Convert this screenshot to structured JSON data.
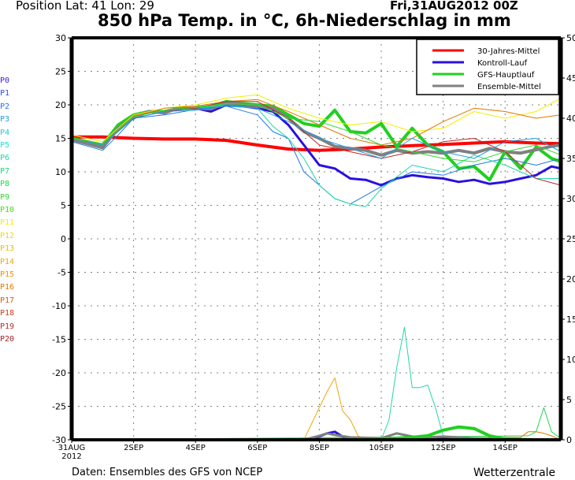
{
  "header": {
    "position": "Position   Lat: 41  Lon: 29",
    "date": "Fri,31AUG2012  00Z",
    "title": "850 hPa Temp. in °C, 6h-Niederschlag in mm"
  },
  "footer": {
    "source": "Daten: Ensembles des GFS von NCEP",
    "brand": "Wetterzentrale"
  },
  "members": [
    {
      "label": "P0",
      "color": "#3a1fd6"
    },
    {
      "label": "P1",
      "color": "#2a4fe8"
    },
    {
      "label": "P2",
      "color": "#1f78e8"
    },
    {
      "label": "P3",
      "color": "#1fa0e8"
    },
    {
      "label": "P4",
      "color": "#1fc8e0"
    },
    {
      "label": "P5",
      "color": "#1fe0d0"
    },
    {
      "label": "P6",
      "color": "#1fd8a8"
    },
    {
      "label": "P7",
      "color": "#1fd880"
    },
    {
      "label": "P8",
      "color": "#1fd850"
    },
    {
      "label": "P9",
      "color": "#30d830"
    },
    {
      "label": "P10",
      "color": "#40e010"
    },
    {
      "label": "P11",
      "color": "#f0f000"
    },
    {
      "label": "P12",
      "color": "#f0d800"
    },
    {
      "label": "P13",
      "color": "#f0c000"
    },
    {
      "label": "P14",
      "color": "#f0a800"
    },
    {
      "label": "P15",
      "color": "#f09000"
    },
    {
      "label": "P16",
      "color": "#e07800"
    },
    {
      "label": "P17",
      "color": "#d06010"
    },
    {
      "label": "P18",
      "color": "#c84020"
    },
    {
      "label": "P19",
      "color": "#c02828"
    },
    {
      "label": "P20",
      "color": "#a82020"
    }
  ],
  "chart_data": {
    "type": "line",
    "title": "850 hPa Temp. in °C, 6h-Niederschlag in mm",
    "xlabel": "",
    "ylabel_left": "°C",
    "ylabel_right": "mm",
    "x_unit": "days since 31AUG2012 00Z",
    "xlim": [
      0,
      15.8
    ],
    "ylim_left": [
      -30,
      30
    ],
    "ylim_right": [
      0,
      50
    ],
    "grid": true,
    "legend_position": "top-right",
    "x_ticks": [
      {
        "value": 0,
        "label": "31AUG",
        "sublabel": "2012"
      },
      {
        "value": 2,
        "label": "2SEP"
      },
      {
        "value": 4,
        "label": "4SEP"
      },
      {
        "value": 6,
        "label": "6SEP"
      },
      {
        "value": 8,
        "label": "8SEP"
      },
      {
        "value": 10,
        "label": "10SEP"
      },
      {
        "value": 12,
        "label": "12SEP"
      },
      {
        "value": 14,
        "label": "14SEP"
      }
    ],
    "y_ticks_left": [
      30,
      25,
      20,
      15,
      10,
      5,
      0,
      -5,
      -10,
      -15,
      -20,
      -25,
      -30
    ],
    "y_ticks_right": [
      50,
      45,
      40,
      35,
      30,
      25,
      20,
      15,
      10,
      5,
      0
    ],
    "legend": [
      {
        "name": "30-Jahres-Mittel",
        "color": "#ff0000"
      },
      {
        "name": "Kontroll-Lauf",
        "color": "#2a10e0"
      },
      {
        "name": "GFS-Hauptlauf",
        "color": "#20d020"
      },
      {
        "name": "Ensemble-Mittel",
        "color": "#808080"
      }
    ],
    "series": [
      {
        "name": "30-Jahres-Mittel",
        "color": "#ff0000",
        "width": 4,
        "axis": "left",
        "x": [
          0,
          1,
          2,
          3,
          4,
          5,
          6,
          7,
          8,
          9,
          10,
          11,
          12,
          13,
          14,
          15,
          15.8
        ],
        "y": [
          15.2,
          15.2,
          15.0,
          14.9,
          14.9,
          14.7,
          14.0,
          13.4,
          13.2,
          13.4,
          13.7,
          13.9,
          14.1,
          14.3,
          14.5,
          14.3,
          14.2
        ]
      },
      {
        "name": "Kontroll-Lauf",
        "color": "#2a10e0",
        "width": 3,
        "axis": "left",
        "x": [
          0,
          0.5,
          1,
          1.5,
          2,
          2.5,
          3,
          3.5,
          4,
          4.5,
          5,
          5.5,
          6,
          6.5,
          7,
          7.5,
          8,
          8.5,
          9,
          9.5,
          10,
          10.5,
          11,
          11.5,
          12,
          12.5,
          13,
          13.5,
          14,
          14.5,
          15,
          15.5,
          15.8
        ],
        "y": [
          15,
          14.2,
          13.8,
          16.5,
          18,
          19,
          18.8,
          19.5,
          19.5,
          19,
          20,
          19.8,
          19.5,
          19,
          17,
          14,
          11,
          10.5,
          9,
          8.8,
          8,
          9,
          9.5,
          9.2,
          9,
          8.5,
          8.8,
          8.2,
          8.5,
          9,
          9.5,
          10.8,
          10.5
        ]
      },
      {
        "name": "GFS-Hauptlauf",
        "color": "#20d020",
        "width": 4,
        "axis": "left",
        "x": [
          0,
          0.5,
          1,
          1.5,
          2,
          2.5,
          3,
          3.5,
          4,
          4.5,
          5,
          5.5,
          6,
          6.5,
          7,
          7.2,
          7.5,
          8,
          8.5,
          9,
          9.5,
          10,
          10.5,
          11,
          11.5,
          12,
          12.5,
          13,
          13.5,
          14,
          14.5,
          15,
          15.5,
          15.8
        ],
        "y": [
          15,
          14.5,
          14,
          17,
          18.5,
          19,
          19,
          19.5,
          19.5,
          19.8,
          20.5,
          20.2,
          20,
          19.8,
          18.5,
          18,
          17.2,
          16.8,
          19.2,
          16,
          15.8,
          17.2,
          13.8,
          16.5,
          14,
          13,
          10.5,
          10.8,
          8.8,
          13,
          10.5,
          13.7,
          12,
          11.5
        ]
      },
      {
        "name": "Ensemble-Mittel",
        "color": "#808080",
        "width": 4,
        "axis": "left",
        "x": [
          0,
          0.5,
          1,
          1.5,
          2,
          2.5,
          3,
          3.5,
          4,
          4.5,
          5,
          5.5,
          6,
          6.5,
          7,
          7.5,
          8,
          8.5,
          9,
          9.5,
          10,
          10.5,
          11,
          11.5,
          12,
          12.5,
          13,
          13.5,
          14,
          14.5,
          15,
          15.5,
          15.8
        ],
        "y": [
          14.8,
          14.2,
          13.6,
          16.5,
          18.2,
          19,
          18.8,
          19.6,
          19.5,
          19.4,
          20.3,
          20.1,
          19.8,
          19.5,
          18,
          16,
          15,
          13.8,
          13.5,
          13.2,
          12.5,
          13.2,
          12.8,
          13,
          12.8,
          13.2,
          12.8,
          13.5,
          13,
          12.8,
          13.3,
          13.8,
          14
        ]
      },
      {
        "name": "P1",
        "color": "#1f78e8",
        "width": 1,
        "axis": "left",
        "x": [
          0,
          1,
          1.5,
          2,
          3,
          4,
          5,
          6,
          6.5,
          7,
          7.5,
          8,
          8.5,
          9,
          9.5,
          10,
          11,
          12,
          13,
          14,
          15,
          15.8
        ],
        "y": [
          14.5,
          13.2,
          15.5,
          18,
          18.5,
          19.3,
          19.8,
          18.5,
          16,
          15,
          10,
          8,
          6,
          5.2,
          6.5,
          7.8,
          10,
          9.5,
          11,
          12,
          11,
          12
        ]
      },
      {
        "name": "P6",
        "color": "#1fd8a8",
        "width": 1,
        "axis": "left",
        "x": [
          0,
          1,
          2,
          3,
          4,
          5,
          6,
          6.5,
          7,
          7.5,
          8,
          8.5,
          9,
          9.5,
          10,
          11,
          12,
          13,
          14,
          15,
          15.8
        ],
        "y": [
          15,
          14,
          18,
          19,
          19.5,
          20,
          19.5,
          16.8,
          15,
          12,
          8,
          6,
          5.2,
          4.8,
          7.5,
          11,
          10,
          12.5,
          11,
          9,
          9
        ]
      },
      {
        "name": "P11",
        "color": "#f0f000",
        "width": 1,
        "axis": "left",
        "x": [
          0,
          1,
          2,
          3,
          4,
          5,
          6,
          7,
          8,
          9,
          10,
          11,
          12,
          13,
          14,
          15,
          15.8
        ],
        "y": [
          15.5,
          14.5,
          18.5,
          19.5,
          20,
          21,
          21.5,
          19.5,
          18,
          17,
          17.5,
          16,
          16.5,
          19,
          18,
          19,
          21
        ]
      },
      {
        "name": "P16",
        "color": "#e07800",
        "width": 1,
        "axis": "left",
        "x": [
          0,
          1,
          2,
          3,
          4,
          5,
          6,
          7,
          8,
          9,
          10,
          11,
          12,
          13,
          14,
          15,
          15.8
        ],
        "y": [
          15,
          14,
          18.3,
          19.5,
          19.8,
          20.5,
          20.8,
          19,
          17,
          15,
          14,
          15,
          17.5,
          19.5,
          19,
          18,
          18.5
        ]
      },
      {
        "name": "P19",
        "color": "#c02828",
        "width": 1,
        "axis": "left",
        "x": [
          0,
          1,
          2,
          3,
          4,
          5,
          6,
          7,
          8,
          9,
          10,
          11,
          12,
          13,
          14,
          15,
          15.8
        ],
        "y": [
          15,
          14.2,
          18,
          19,
          19.5,
          20.5,
          20.5,
          18,
          14,
          13,
          12,
          13,
          14.5,
          15,
          13,
          9,
          8
        ]
      },
      {
        "name": "P3",
        "color": "#1fa0e8",
        "width": 1,
        "axis": "left",
        "x": [
          0,
          1,
          2,
          3,
          4,
          5,
          6,
          7,
          8,
          9,
          10,
          11,
          12,
          13,
          14,
          15,
          15.8
        ],
        "y": [
          15,
          14,
          18,
          19,
          19.2,
          19.8,
          19.5,
          17.5,
          15,
          13.5,
          12,
          15,
          13,
          12,
          14.5,
          15,
          13
        ]
      },
      {
        "name": "P9",
        "color": "#30d830",
        "width": 1,
        "axis": "left",
        "x": [
          0,
          1,
          2,
          3,
          4,
          5,
          6,
          7,
          8,
          9,
          10,
          11,
          12,
          13,
          14,
          15,
          15.8
        ],
        "y": [
          15,
          14.2,
          18.2,
          19.2,
          19.6,
          20.2,
          20,
          18,
          17.5,
          16,
          14,
          13,
          12,
          11.5,
          13,
          14,
          12.5
        ]
      },
      {
        "name": "P14-precip",
        "color": "#f0a800",
        "width": 1,
        "axis": "right",
        "x": [
          0,
          7,
          7.5,
          8,
          8.25,
          8.5,
          8.75,
          9,
          9.25,
          9.5,
          10,
          15.8
        ],
        "y": [
          0,
          0,
          0,
          4,
          6,
          7.7,
          3.6,
          2.5,
          0.5,
          0,
          0,
          0
        ]
      },
      {
        "name": "P6-precip",
        "color": "#1fd8a8",
        "width": 1,
        "axis": "right",
        "x": [
          0,
          10,
          10.25,
          10.5,
          10.75,
          11,
          11.25,
          11.5,
          11.75,
          12,
          12.25,
          15.8
        ],
        "y": [
          0,
          0,
          2.5,
          9,
          14,
          6.5,
          6.5,
          6.8,
          4,
          0.5,
          0,
          0
        ]
      },
      {
        "name": "P8-precip",
        "color": "#1fd850",
        "width": 1,
        "axis": "right",
        "x": [
          0,
          14.75,
          15,
          15.25,
          15.5,
          15.75,
          15.8
        ],
        "y": [
          0,
          0.5,
          1,
          4,
          1,
          0.3,
          0
        ]
      },
      {
        "name": "P16-precip",
        "color": "#e07800",
        "width": 1,
        "axis": "right",
        "x": [
          0,
          14.5,
          14.75,
          15,
          15.25,
          15.5,
          15.8
        ],
        "y": [
          0,
          0.3,
          1,
          1,
          0.8,
          0.5,
          0
        ]
      },
      {
        "name": "Kontroll-Lauf-precip",
        "color": "#2a10e0",
        "width": 3,
        "axis": "right",
        "x": [
          0,
          7.5,
          8,
          8.25,
          8.5,
          8.75,
          9,
          10,
          11,
          12,
          13,
          15.8
        ],
        "y": [
          0,
          0,
          0.4,
          0.8,
          1.0,
          0.4,
          0.2,
          0.1,
          0.2,
          0.3,
          0.1,
          0
        ]
      },
      {
        "name": "Ensemble-Mittel-precip",
        "color": "#808080",
        "width": 3,
        "axis": "right",
        "x": [
          0,
          7.5,
          8,
          8.25,
          8.5,
          9,
          10,
          10.5,
          11,
          11.5,
          12,
          13,
          14,
          15.8
        ],
        "y": [
          0,
          0,
          0.5,
          0.8,
          0.6,
          0.3,
          0.2,
          0.8,
          0.4,
          0.3,
          0.4,
          0.2,
          0.1,
          0
        ]
      },
      {
        "name": "GFS-Hauptlauf-precip",
        "color": "#20d020",
        "width": 4,
        "axis": "right",
        "x": [
          0,
          8.5,
          10,
          11,
          11.5,
          12,
          12.5,
          13,
          13.5,
          14,
          15,
          15.8
        ],
        "y": [
          0,
          0,
          0.1,
          0.3,
          0.5,
          1.2,
          1.6,
          1.4,
          0.5,
          0.1,
          0,
          0
        ]
      }
    ]
  }
}
